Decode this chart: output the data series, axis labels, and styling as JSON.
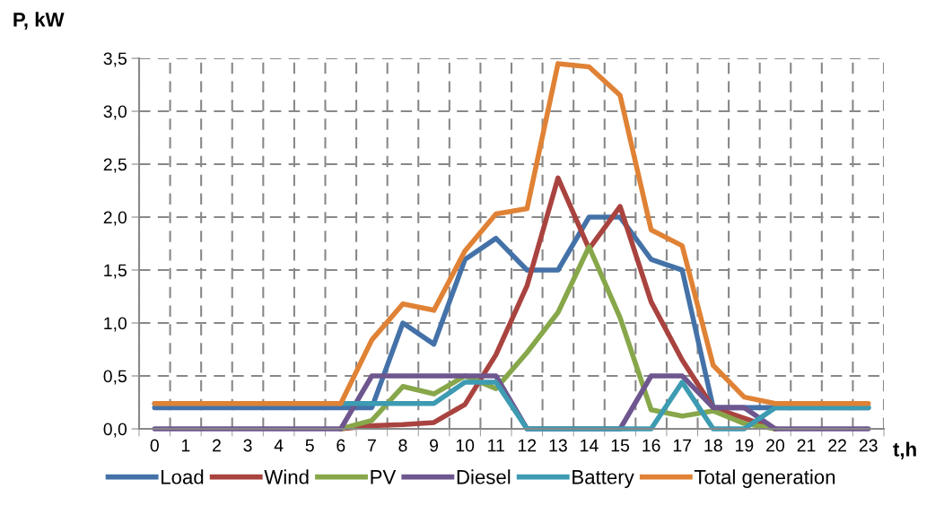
{
  "chart_data": {
    "type": "line",
    "ylabel": "P, kW",
    "xlabel": "t,h",
    "categories": [
      "0",
      "1",
      "2",
      "3",
      "4",
      "5",
      "6",
      "7",
      "8",
      "9",
      "10",
      "11",
      "12",
      "13",
      "14",
      "15",
      "16",
      "17",
      "18",
      "19",
      "20",
      "21",
      "22",
      "23"
    ],
    "series": [
      {
        "name": "Load",
        "color": "#4472a8",
        "values": [
          0.2,
          0.2,
          0.2,
          0.2,
          0.2,
          0.2,
          0.2,
          0.2,
          1.0,
          0.8,
          1.6,
          1.8,
          1.5,
          1.5,
          2.0,
          2.0,
          1.6,
          1.5,
          0.2,
          0.2,
          0.2,
          0.2,
          0.2,
          0.2
        ]
      },
      {
        "name": "Wind",
        "color": "#a9433f",
        "values": [
          null,
          null,
          null,
          null,
          null,
          null,
          0,
          0.03,
          0.04,
          0.06,
          0.23,
          0.7,
          1.35,
          2.37,
          1.7,
          2.1,
          1.2,
          0.65,
          0.2,
          0.1,
          0,
          null,
          null,
          null
        ]
      },
      {
        "name": "PV",
        "color": "#87a74a",
        "values": [
          null,
          null,
          null,
          null,
          null,
          null,
          0,
          0.08,
          0.4,
          0.33,
          0.5,
          0.38,
          0.72,
          1.1,
          1.72,
          1.05,
          0.18,
          0.12,
          0.17,
          0.05,
          0,
          null,
          null,
          null
        ]
      },
      {
        "name": "Diesel",
        "color": "#6e568e",
        "values": [
          0,
          0,
          0,
          0,
          0,
          0,
          0,
          0.5,
          0.5,
          0.5,
          0.5,
          0.5,
          0,
          0,
          0,
          0,
          0.5,
          0.5,
          0.2,
          0.2,
          0,
          0,
          0,
          0
        ]
      },
      {
        "name": "Battery",
        "color": "#3d9bb2",
        "values": [
          0.24,
          0.24,
          0.24,
          0.24,
          0.24,
          0.24,
          0.24,
          0.24,
          0.24,
          0.24,
          0.44,
          0.44,
          0,
          0,
          0,
          0,
          0,
          0.44,
          0,
          0,
          0.2,
          0.2,
          0.2,
          0.2
        ]
      },
      {
        "name": "Total generation",
        "color": "#e08235",
        "values": [
          0.24,
          0.24,
          0.24,
          0.24,
          0.24,
          0.24,
          0.24,
          0.84,
          1.18,
          1.12,
          1.68,
          2.03,
          2.08,
          3.45,
          3.42,
          3.15,
          1.88,
          1.73,
          0.6,
          0.3,
          0.24,
          0.24,
          0.24,
          0.24
        ]
      }
    ],
    "ylim": [
      0,
      3.5
    ],
    "yticks": [
      {
        "value": 0,
        "label": "0,0"
      },
      {
        "value": 0.5,
        "label": "0,5"
      },
      {
        "value": 1.0,
        "label": "1,0"
      },
      {
        "value": 1.5,
        "label": "1,5"
      },
      {
        "value": 2.0,
        "label": "2,0"
      },
      {
        "value": 2.5,
        "label": "2,5"
      },
      {
        "value": 3.0,
        "label": "3,0"
      },
      {
        "value": 3.5,
        "label": "3,5"
      }
    ],
    "grid": true,
    "legend": "bottom",
    "marker": "none",
    "line_style": "solid"
  }
}
